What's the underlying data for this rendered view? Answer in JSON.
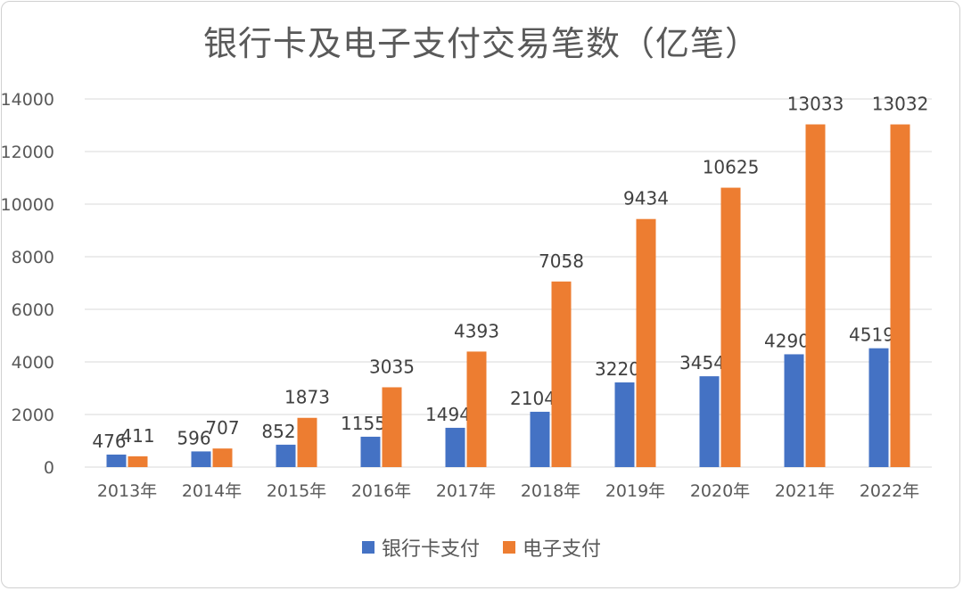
{
  "chart_data": {
    "type": "bar",
    "title": "银行卡及电子支付交易笔数（亿笔）",
    "categories": [
      "2013年",
      "2014年",
      "2015年",
      "2016年",
      "2017年",
      "2018年",
      "2019年",
      "2020年",
      "2021年",
      "2022年"
    ],
    "series": [
      {
        "name": "银行卡支付",
        "color": "#4472C4",
        "values": [
          476,
          596,
          852,
          1155,
          1494,
          2104,
          3220,
          3454,
          4290,
          4519
        ]
      },
      {
        "name": "电子支付",
        "color": "#ED7D31",
        "values": [
          411,
          707,
          1873,
          3035,
          4393,
          7058,
          9434,
          10625,
          13033,
          13032
        ]
      }
    ],
    "yticks": [
      0,
      2000,
      4000,
      6000,
      8000,
      10000,
      12000,
      14000
    ],
    "ylim": [
      0,
      14000
    ],
    "grid": true,
    "legend_position": "bottom"
  }
}
